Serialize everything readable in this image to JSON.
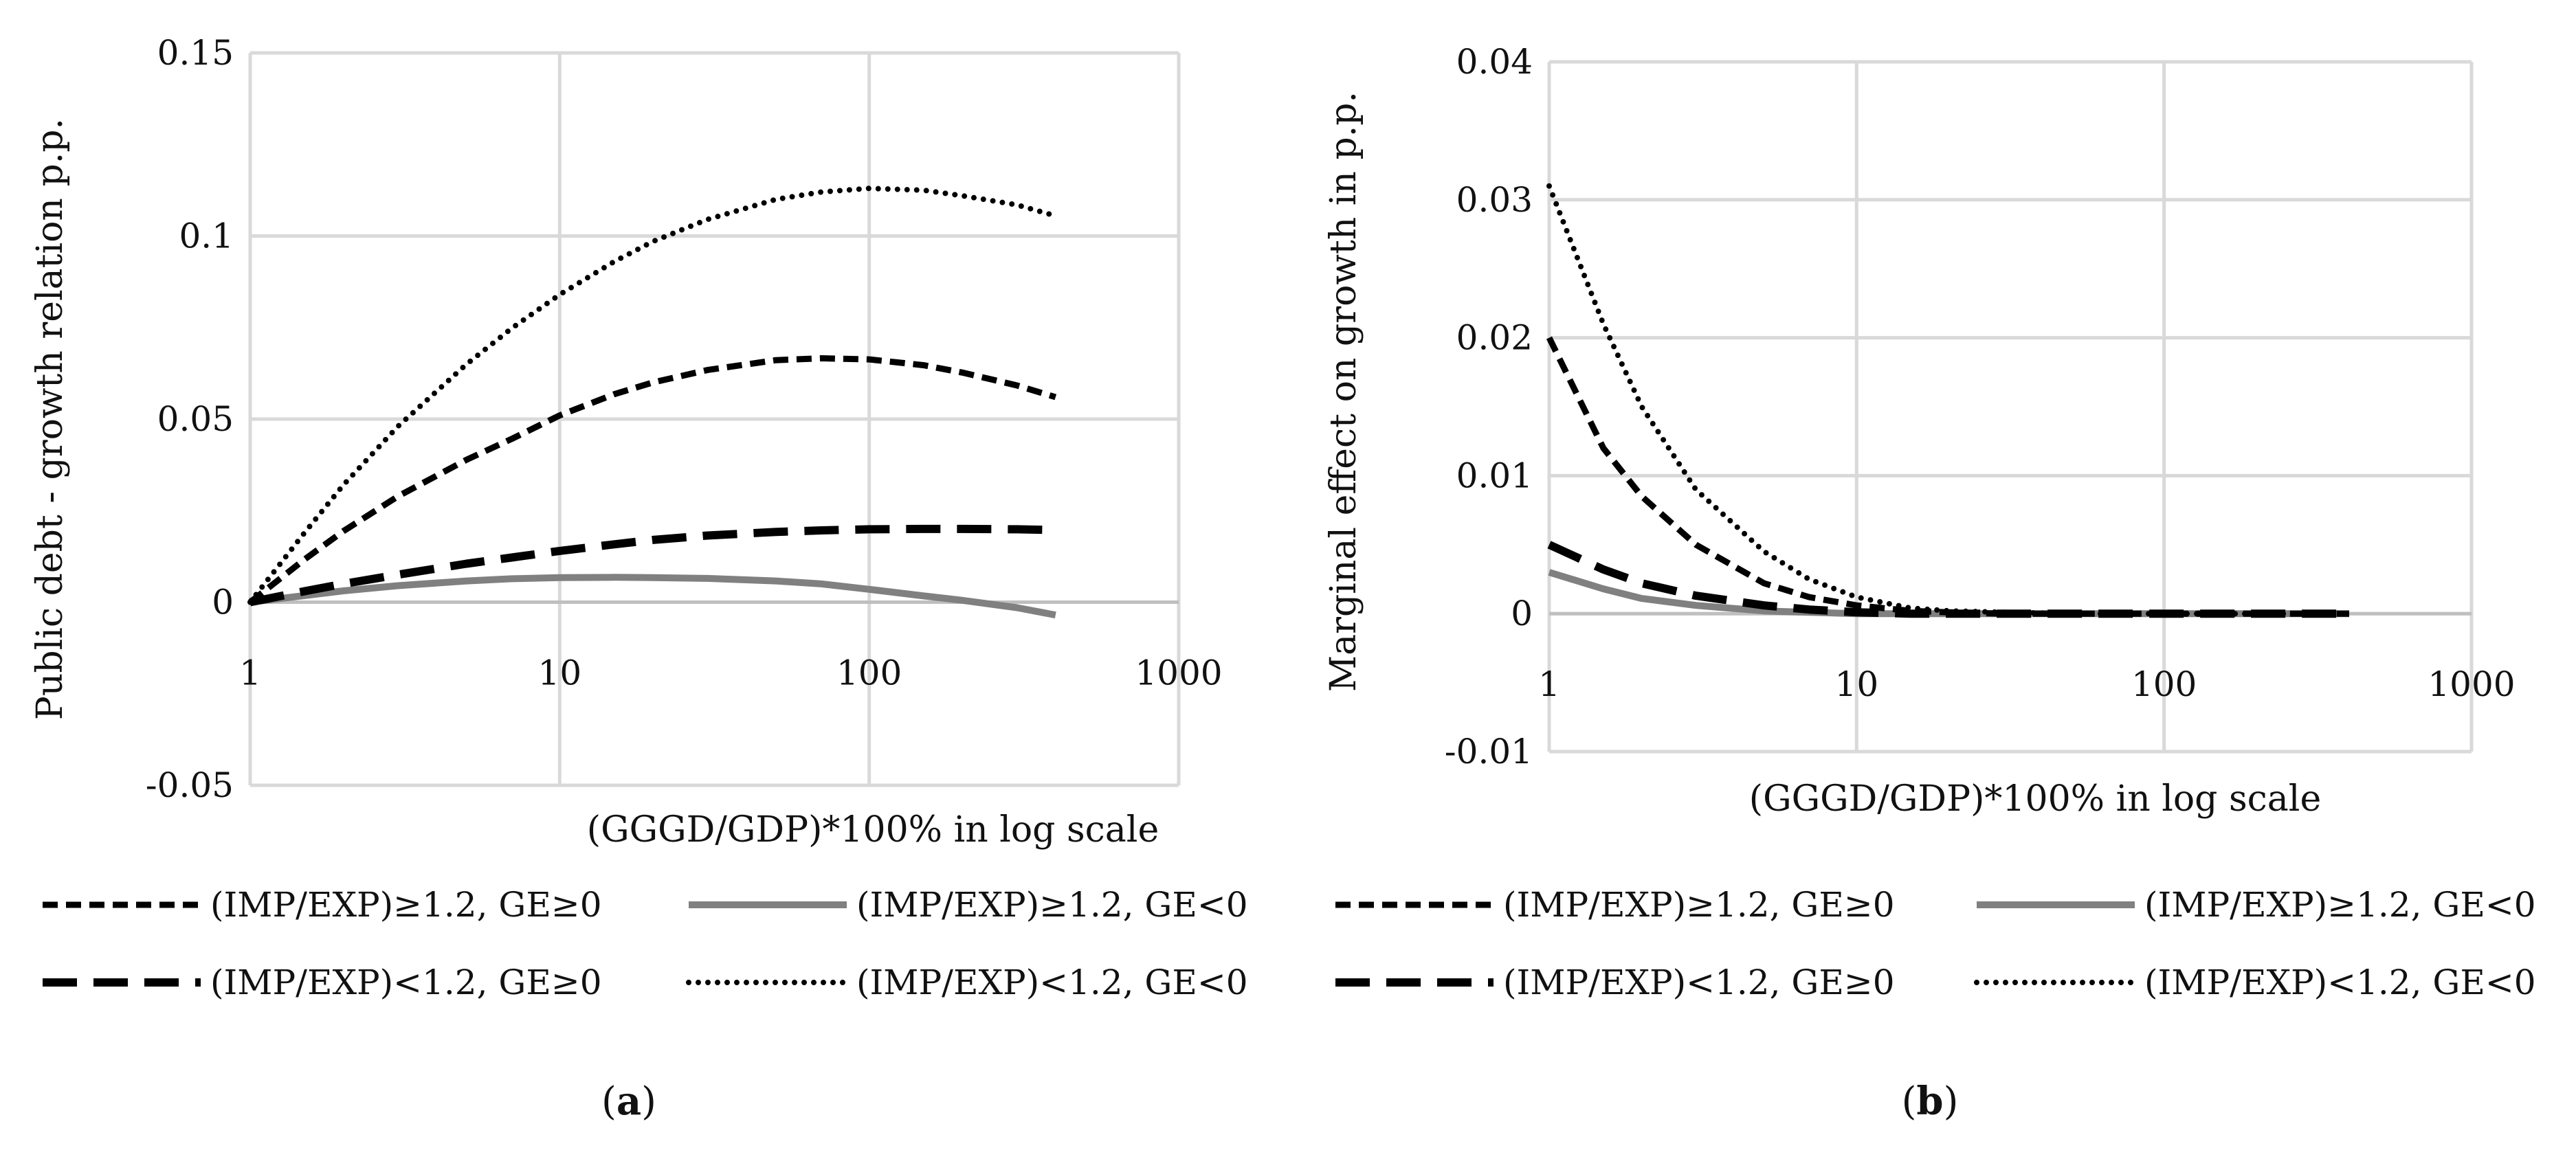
{
  "chart_data": [
    {
      "type": "line",
      "id": "a",
      "caption_letter": "a",
      "ylabel": "Public debt - growth relation p.p.",
      "xlabel": "(GGGD/GDP)*100% in log scale",
      "x_scale": "log",
      "xlim": [
        1,
        1000
      ],
      "ylim": [
        -0.05,
        0.15
      ],
      "x_ticks": [
        1,
        10,
        100,
        1000
      ],
      "x_tick_labels": [
        "1",
        "10",
        "100",
        "1000"
      ],
      "y_ticks": [
        -0.05,
        0,
        0.05,
        0.1,
        0.15
      ],
      "y_tick_labels": [
        "-0.05",
        "0",
        "0.05",
        "0.1",
        "0.15"
      ],
      "grid": true,
      "legend_position": "bottom",
      "x": [
        1,
        1.5,
        2,
        3,
        5,
        7,
        10,
        15,
        20,
        30,
        50,
        70,
        100,
        150,
        200,
        300,
        400
      ],
      "series": [
        {
          "name": "(IMP/EXP)≥1.2, GE≥0",
          "style": "short-dash",
          "color": "#000000",
          "values": [
            0,
            0.0117,
            0.0194,
            0.0289,
            0.0389,
            0.0446,
            0.051,
            0.0568,
            0.06,
            0.0634,
            0.0661,
            0.0666,
            0.0663,
            0.0647,
            0.0627,
            0.0592,
            0.056
          ]
        },
        {
          "name": "(IMP/EXP)≥1.2, GE<0",
          "style": "solid",
          "color": "#808080",
          "values": [
            0,
            0.0018,
            0.0031,
            0.0045,
            0.0058,
            0.0064,
            0.0067,
            0.0068,
            0.0067,
            0.0065,
            0.0058,
            0.005,
            0.0035,
            0.0017,
            0.0005,
            -0.0015,
            -0.0035
          ]
        },
        {
          "name": "(IMP/EXP)<1.2, GE≥0",
          "style": "long-dash",
          "color": "#000000",
          "values": [
            0,
            0.003,
            0.005,
            0.0075,
            0.0105,
            0.0122,
            0.014,
            0.0158,
            0.017,
            0.0182,
            0.0192,
            0.0196,
            0.0199,
            0.02,
            0.02,
            0.0199,
            0.0197
          ]
        },
        {
          "name": "(IMP/EXP)<1.2, GE<0",
          "style": "dotted",
          "color": "#000000",
          "values": [
            0,
            0.019,
            0.032,
            0.048,
            0.065,
            0.0748,
            0.084,
            0.093,
            0.0985,
            0.1045,
            0.11,
            0.112,
            0.113,
            0.1125,
            0.111,
            0.1085,
            0.1055
          ]
        }
      ]
    },
    {
      "type": "line",
      "id": "b",
      "caption_letter": "b",
      "ylabel": "Marginal effect on growth in p.p.",
      "xlabel": "(GGGD/GDP)*100% in log scale",
      "x_scale": "log",
      "xlim": [
        1,
        1000
      ],
      "ylim": [
        -0.01,
        0.04
      ],
      "x_ticks": [
        1,
        10,
        100,
        1000
      ],
      "x_tick_labels": [
        "1",
        "10",
        "100",
        "1000"
      ],
      "y_ticks": [
        -0.01,
        0,
        0.01,
        0.02,
        0.03,
        0.04
      ],
      "y_tick_labels": [
        "-0.01",
        "0",
        "0.01",
        "0.02",
        "0.03",
        "0.04"
      ],
      "grid": true,
      "legend_position": "bottom",
      "x": [
        1,
        1.5,
        2,
        3,
        5,
        7,
        10,
        15,
        20,
        30,
        50,
        70,
        100,
        150,
        200,
        300,
        400
      ],
      "series": [
        {
          "name": "(IMP/EXP)≥1.2, GE≥0",
          "style": "short-dash",
          "color": "#000000",
          "values": [
            0.02,
            0.012,
            0.0085,
            0.005,
            0.0022,
            0.0012,
            0.0006,
            0.0002,
            0.0001,
            0,
            0,
            0,
            0,
            0,
            0,
            0,
            0
          ]
        },
        {
          "name": "(IMP/EXP)≥1.2, GE<0",
          "style": "solid",
          "color": "#808080",
          "values": [
            0.003,
            0.0018,
            0.0011,
            0.0006,
            0.0002,
            0.0001,
            0,
            0,
            0,
            0,
            0,
            0,
            0,
            0,
            0,
            0,
            0
          ]
        },
        {
          "name": "(IMP/EXP)<1.2, GE≥0",
          "style": "long-dash",
          "color": "#000000",
          "values": [
            0.005,
            0.0032,
            0.0022,
            0.0013,
            0.0006,
            0.0003,
            0.0001,
            0,
            0,
            0,
            0,
            0,
            0,
            0,
            0,
            0,
            0
          ]
        },
        {
          "name": "(IMP/EXP)<1.2, GE<0",
          "style": "dotted",
          "color": "#000000",
          "values": [
            0.031,
            0.021,
            0.015,
            0.009,
            0.0045,
            0.0025,
            0.0012,
            0.0004,
            0.0002,
            0.0001,
            0,
            0,
            0,
            0,
            0,
            0,
            0
          ]
        }
      ]
    }
  ]
}
